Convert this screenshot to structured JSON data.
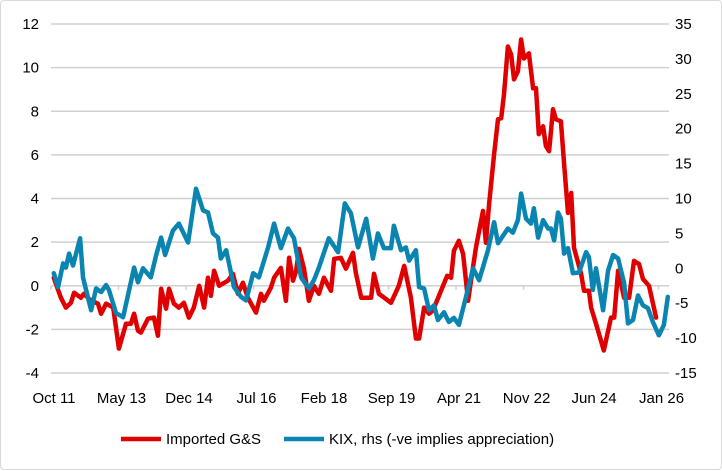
{
  "chart_data": {
    "type": "line",
    "title": "",
    "x_unit": "months since Oct 2011",
    "x_tick_labels": [
      "Oct 11",
      "May 13",
      "Dec 14",
      "Jul 16",
      "Feb 18",
      "Sep 19",
      "Apr 21",
      "Nov 22",
      "Jun 24",
      "Jan 26"
    ],
    "x_tick_months": [
      0,
      19,
      38,
      57,
      76,
      95,
      114,
      133,
      152,
      171
    ],
    "xlim": [
      0,
      174
    ],
    "y_left": {
      "ylim": [
        -4,
        12
      ],
      "ticks": [
        -4,
        -2,
        0,
        2,
        4,
        6,
        8,
        10,
        12
      ]
    },
    "y_right": {
      "ylim": [
        -15,
        35
      ],
      "ticks": [
        -15,
        -10,
        -5,
        0,
        5,
        10,
        15,
        20,
        25,
        30,
        35
      ]
    },
    "grid": true,
    "legend_position": "bottom",
    "series": [
      {
        "name": "Imported G&S",
        "axis": "left",
        "color": "#e00000",
        "points": [
          [
            0.8,
            0.37
          ],
          [
            2.8,
            -0.55
          ],
          [
            4.2,
            -1.0
          ],
          [
            5.6,
            -0.78
          ],
          [
            6.5,
            -0.32
          ],
          [
            8.4,
            -0.55
          ],
          [
            9.3,
            -0.37
          ],
          [
            11.3,
            -0.69
          ],
          [
            13.2,
            -0.82
          ],
          [
            14.1,
            -1.28
          ],
          [
            15.5,
            -0.82
          ],
          [
            17.5,
            -1.0
          ],
          [
            19.1,
            -2.88
          ],
          [
            21.1,
            -1.74
          ],
          [
            22.5,
            -1.74
          ],
          [
            23.4,
            -1.28
          ],
          [
            24.5,
            -2.06
          ],
          [
            25.3,
            -2.15
          ],
          [
            27.3,
            -1.51
          ],
          [
            29.0,
            -1.46
          ],
          [
            30.1,
            -2.29
          ],
          [
            31.0,
            -0.14
          ],
          [
            32.4,
            -1.05
          ],
          [
            33.2,
            -0.14
          ],
          [
            34.6,
            -0.82
          ],
          [
            36.0,
            -1.0
          ],
          [
            37.4,
            -0.78
          ],
          [
            38.8,
            -1.46
          ],
          [
            40.2,
            -1.0
          ],
          [
            41.7,
            0
          ],
          [
            43.1,
            -1.0
          ],
          [
            44.2,
            0.37
          ],
          [
            45.0,
            -0.46
          ],
          [
            45.9,
            0.69
          ],
          [
            47.3,
            0
          ],
          [
            49.8,
            0.23
          ],
          [
            51.2,
            0.55
          ],
          [
            52.6,
            -0.37
          ],
          [
            54.0,
            0.14
          ],
          [
            55.4,
            -0.55
          ],
          [
            57.7,
            -1.23
          ],
          [
            59.1,
            -0.37
          ],
          [
            59.9,
            -0.69
          ],
          [
            61.9,
            -0.09
          ],
          [
            62.8,
            0.37
          ],
          [
            64.7,
            0.82
          ],
          [
            66.1,
            -0.69
          ],
          [
            67.0,
            1.28
          ],
          [
            68.1,
            0.23
          ],
          [
            69.0,
            0.69
          ],
          [
            69.8,
            1.69
          ],
          [
            71.2,
            0.78
          ],
          [
            72.6,
            -0.69
          ],
          [
            74.0,
            0
          ],
          [
            75.4,
            -0.37
          ],
          [
            76.8,
            0.37
          ],
          [
            78.8,
            -0.23
          ],
          [
            79.7,
            1.23
          ],
          [
            81.6,
            1.28
          ],
          [
            83.0,
            0.78
          ],
          [
            85.0,
            1.51
          ],
          [
            85.8,
            0.6
          ],
          [
            87.3,
            -0.55
          ],
          [
            90.1,
            -0.55
          ],
          [
            90.9,
            0.55
          ],
          [
            92.3,
            -0.37
          ],
          [
            95.7,
            -0.78
          ],
          [
            97.9,
            0
          ],
          [
            99.4,
            0.91
          ],
          [
            101.3,
            -0.55
          ],
          [
            102.7,
            -2.42
          ],
          [
            103.6,
            -2.42
          ],
          [
            105.0,
            -1.0
          ],
          [
            106.4,
            -1.28
          ],
          [
            107.5,
            -1.14
          ],
          [
            111.5,
            0.46
          ],
          [
            112.6,
            0.37
          ],
          [
            113.4,
            1.6
          ],
          [
            114.8,
            2.06
          ],
          [
            116.0,
            1.46
          ],
          [
            117.4,
            -0.69
          ],
          [
            118.2,
            0.23
          ],
          [
            119.6,
            1.74
          ],
          [
            121.6,
            3.43
          ],
          [
            122.4,
            1.97
          ],
          [
            123.3,
            3.75
          ],
          [
            124.7,
            6.03
          ],
          [
            125.8,
            7.63
          ],
          [
            126.7,
            7.68
          ],
          [
            127.5,
            8.78
          ],
          [
            128.6,
            10.97
          ],
          [
            129.5,
            10.61
          ],
          [
            130.3,
            9.46
          ],
          [
            131.4,
            9.83
          ],
          [
            132.3,
            11.29
          ],
          [
            133.1,
            10.42
          ],
          [
            134.5,
            10.65
          ],
          [
            135.7,
            9.05
          ],
          [
            136.5,
            9.05
          ],
          [
            137.3,
            6.95
          ],
          [
            138.5,
            7.31
          ],
          [
            139.3,
            6.4
          ],
          [
            140.2,
            6.17
          ],
          [
            141.3,
            8.09
          ],
          [
            142.1,
            7.63
          ],
          [
            143.5,
            7.54
          ],
          [
            144.4,
            5.58
          ],
          [
            145.5,
            3.34
          ],
          [
            146.4,
            4.25
          ],
          [
            147.2,
            1.74
          ],
          [
            149.2,
            0.55
          ],
          [
            150.0,
            -0.23
          ],
          [
            151.4,
            -0.23
          ],
          [
            152.0,
            -1.0
          ],
          [
            153.4,
            -1.74
          ],
          [
            155.6,
            -2.97
          ],
          [
            157.6,
            -1.46
          ],
          [
            158.5,
            -1.46
          ],
          [
            159.6,
            0.69
          ],
          [
            161.3,
            -0.55
          ],
          [
            162.7,
            -0.55
          ],
          [
            164.1,
            1.14
          ],
          [
            165.5,
            1.0
          ],
          [
            166.6,
            0.32
          ],
          [
            168.3,
            0
          ],
          [
            170.3,
            -1.46
          ]
        ]
      },
      {
        "name": "KIX, rhs (-ve implies appreciation)",
        "axis": "right",
        "color": "#0a84b0",
        "points": [
          [
            0.8,
            -0.7
          ],
          [
            2.0,
            -2.7
          ],
          [
            3.4,
            0.7
          ],
          [
            4.2,
            0.1
          ],
          [
            5.1,
            2.1
          ],
          [
            6.2,
            0.4
          ],
          [
            8.2,
            4.3
          ],
          [
            9.0,
            -1.3
          ],
          [
            11.3,
            -6.0
          ],
          [
            12.7,
            -2.9
          ],
          [
            14.1,
            -3.4
          ],
          [
            15.5,
            -2.4
          ],
          [
            16.3,
            -3.1
          ],
          [
            18.3,
            -6.4
          ],
          [
            20.3,
            -7.0
          ],
          [
            23.4,
            0.1
          ],
          [
            24.5,
            -2.0
          ],
          [
            25.9,
            0
          ],
          [
            28.1,
            -1.3
          ],
          [
            29.6,
            1.9
          ],
          [
            31.0,
            4.4
          ],
          [
            32.1,
            1.9
          ],
          [
            34.3,
            5.4
          ],
          [
            36.0,
            6.4
          ],
          [
            38.6,
            3.7
          ],
          [
            40.8,
            11.4
          ],
          [
            42.8,
            8.3
          ],
          [
            44.2,
            8.0
          ],
          [
            45.6,
            5.0
          ],
          [
            47.0,
            4.4
          ],
          [
            47.8,
            1.4
          ],
          [
            49.3,
            2.6
          ],
          [
            51.5,
            -2.7
          ],
          [
            53.5,
            -4.1
          ],
          [
            54.9,
            -4.6
          ],
          [
            56.9,
            -0.7
          ],
          [
            58.5,
            -1.3
          ],
          [
            61.1,
            3.0
          ],
          [
            62.8,
            6.4
          ],
          [
            64.7,
            2.9
          ],
          [
            66.7,
            5.7
          ],
          [
            68.4,
            4.3
          ],
          [
            70.4,
            -1.3
          ],
          [
            72.6,
            -2.9
          ],
          [
            74.0,
            -1.7
          ],
          [
            75.4,
            0.1
          ],
          [
            78.2,
            4.3
          ],
          [
            80.8,
            2.3
          ],
          [
            82.7,
            9.3
          ],
          [
            84.4,
            7.9
          ],
          [
            86.4,
            3.0
          ],
          [
            88.7,
            7.1
          ],
          [
            90.6,
            1.4
          ],
          [
            92.0,
            5.0
          ],
          [
            93.7,
            2.9
          ],
          [
            95.7,
            2.9
          ],
          [
            96.5,
            6.1
          ],
          [
            98.5,
            2.6
          ],
          [
            99.9,
            3.0
          ],
          [
            100.8,
            1.1
          ],
          [
            102.7,
            2.6
          ],
          [
            103.6,
            -2.7
          ],
          [
            105.0,
            -2.9
          ],
          [
            106.4,
            -6.0
          ],
          [
            107.8,
            -5.3
          ],
          [
            108.9,
            -7.4
          ],
          [
            110.6,
            -6.3
          ],
          [
            112.0,
            -7.7
          ],
          [
            113.4,
            -7.1
          ],
          [
            114.8,
            -8.1
          ],
          [
            116.8,
            -4.1
          ],
          [
            118.8,
            0
          ],
          [
            120.5,
            -1.7
          ],
          [
            123.0,
            2.6
          ],
          [
            124.7,
            6.6
          ],
          [
            125.8,
            3.6
          ],
          [
            128.6,
            5.7
          ],
          [
            130.0,
            5.1
          ],
          [
            131.4,
            6.9
          ],
          [
            132.3,
            10.7
          ],
          [
            133.7,
            7.1
          ],
          [
            135.1,
            6.4
          ],
          [
            135.9,
            8.6
          ],
          [
            137.1,
            4.4
          ],
          [
            138.5,
            6.9
          ],
          [
            139.9,
            5.7
          ],
          [
            140.7,
            5.7
          ],
          [
            141.6,
            4.0
          ],
          [
            142.7,
            8.0
          ],
          [
            143.5,
            7.1
          ],
          [
            144.4,
            2.1
          ],
          [
            145.5,
            2.9
          ],
          [
            146.9,
            -0.7
          ],
          [
            148.6,
            -0.6
          ],
          [
            150.6,
            2.3
          ],
          [
            151.4,
            1.6
          ],
          [
            152.5,
            -3.1
          ],
          [
            153.4,
            0
          ],
          [
            155.4,
            -6.0
          ],
          [
            156.8,
            -0.3
          ],
          [
            158.2,
            1.9
          ],
          [
            159.6,
            1.4
          ],
          [
            161.3,
            -2.1
          ],
          [
            162.4,
            -7.9
          ],
          [
            163.8,
            -7.4
          ],
          [
            165.2,
            -3.9
          ],
          [
            166.6,
            -5.3
          ],
          [
            168.0,
            -5.7
          ],
          [
            169.4,
            -7.7
          ],
          [
            171.1,
            -9.6
          ],
          [
            172.5,
            -8.1
          ],
          [
            173.6,
            -4.1
          ]
        ]
      }
    ]
  }
}
